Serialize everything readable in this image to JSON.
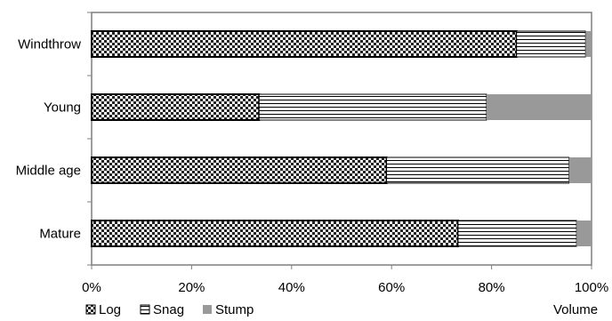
{
  "chart_data": {
    "type": "bar",
    "orientation": "horizontal",
    "stacked": "percent",
    "categories": [
      "Windthrow",
      "Young",
      "Middle age",
      "Mature"
    ],
    "series": [
      {
        "name": "Log",
        "values": [
          85,
          33.5,
          59,
          73.3
        ],
        "pattern": "checker",
        "color": "#000000"
      },
      {
        "name": "Snag",
        "values": [
          13.8,
          45.5,
          36.5,
          23.7
        ],
        "pattern": "horizontal-lines",
        "color": "#000000"
      },
      {
        "name": "Stump",
        "values": [
          1.2,
          21,
          4.5,
          3
        ],
        "pattern": "solid",
        "color": "#999999"
      }
    ],
    "xlim": [
      0,
      100
    ],
    "xticks": [
      0,
      20,
      40,
      60,
      80,
      100
    ],
    "xtick_labels": [
      "0%",
      "20%",
      "40%",
      "60%",
      "80%",
      "100%"
    ],
    "xlabel": "Volume",
    "ylabel": "",
    "title": "",
    "grid": false,
    "legend_position": "bottom-left"
  }
}
